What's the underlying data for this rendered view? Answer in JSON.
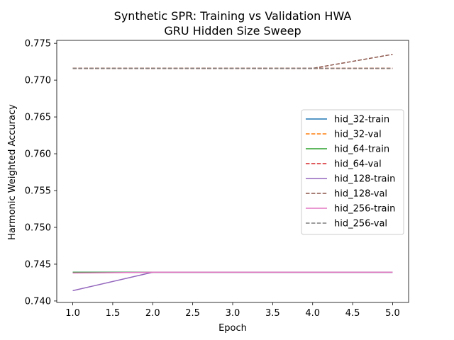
{
  "chart_data": {
    "type": "line",
    "title_lines": [
      "Synthetic SPR: Training vs Validation HWA",
      "GRU Hidden Size Sweep"
    ],
    "xlabel": "Epoch",
    "ylabel": "Harmonic Weighted Accuracy",
    "xlim": [
      0.8,
      5.2
    ],
    "ylim": [
      0.7398,
      0.7754
    ],
    "xticks": [
      1.0,
      1.5,
      2.0,
      2.5,
      3.0,
      3.5,
      4.0,
      4.5,
      5.0
    ],
    "xtick_labels": [
      "1.0",
      "1.5",
      "2.0",
      "2.5",
      "3.0",
      "3.5",
      "4.0",
      "4.5",
      "5.0"
    ],
    "yticks": [
      0.74,
      0.745,
      0.75,
      0.755,
      0.76,
      0.765,
      0.77,
      0.775
    ],
    "ytick_labels": [
      "0.740",
      "0.745",
      "0.750",
      "0.755",
      "0.760",
      "0.765",
      "0.770",
      "0.775"
    ],
    "grid": false,
    "legend_position": "center-right",
    "x": [
      1,
      2,
      3,
      4,
      5
    ],
    "series": [
      {
        "name": "hid_32-train",
        "color": "#1f77b4",
        "dash": "solid",
        "values": [
          0.7439,
          0.7439,
          0.7439,
          0.7439,
          0.7439
        ]
      },
      {
        "name": "hid_32-val",
        "color": "#ff7f0e",
        "dash": "dashed",
        "values": [
          0.7716,
          0.7716,
          0.7716,
          0.7716,
          0.7716
        ]
      },
      {
        "name": "hid_64-train",
        "color": "#2ca02c",
        "dash": "solid",
        "values": [
          0.7439,
          0.7439,
          0.7439,
          0.7439,
          0.7439
        ]
      },
      {
        "name": "hid_64-val",
        "color": "#d62728",
        "dash": "dashed",
        "values": [
          0.7716,
          0.7716,
          0.7716,
          0.7716,
          0.7716
        ]
      },
      {
        "name": "hid_128-train",
        "color": "#9467bd",
        "dash": "solid",
        "values": [
          0.7414,
          0.7439,
          0.7439,
          0.7439,
          0.7439
        ]
      },
      {
        "name": "hid_128-val",
        "color": "#8c564b",
        "dash": "dashed",
        "values": [
          0.7716,
          0.7716,
          0.7716,
          0.7716,
          0.7735
        ]
      },
      {
        "name": "hid_256-train",
        "color": "#e377c2",
        "dash": "solid",
        "values": [
          0.7438,
          0.7439,
          0.7439,
          0.7439,
          0.7439
        ]
      },
      {
        "name": "hid_256-val",
        "color": "#7f7f7f",
        "dash": "dashed",
        "values": [
          0.7716,
          0.7716,
          0.7716,
          0.7716,
          0.7716
        ]
      }
    ]
  }
}
